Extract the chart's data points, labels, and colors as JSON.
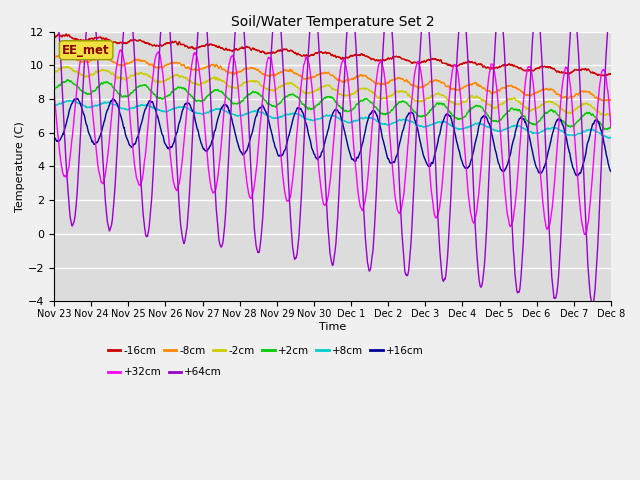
{
  "title": "Soil/Water Temperature Set 2",
  "xlabel": "Time",
  "ylabel": "Temperature (C)",
  "ylim": [
    -4,
    12
  ],
  "yticks": [
    -4,
    -2,
    0,
    2,
    4,
    6,
    8,
    10,
    12
  ],
  "plot_bg": "#dcdcdc",
  "fig_bg": "#f0f0f0",
  "annotation_text": "EE_met",
  "series": [
    {
      "label": "-16cm",
      "color": "#cc0000",
      "base_start": 11.7,
      "base_end": 9.5,
      "amplitude": 0.12,
      "phase_days": 0.0,
      "noise_scale": 0.08
    },
    {
      "label": "-8cm",
      "color": "#ff8800",
      "base_start": 10.5,
      "base_end": 8.1,
      "amplitude": 0.18,
      "phase_days": 0.05,
      "noise_scale": 0.08
    },
    {
      "label": "-2cm",
      "color": "#cccc00",
      "base_start": 9.7,
      "base_end": 7.3,
      "amplitude": 0.22,
      "phase_days": 0.1,
      "noise_scale": 0.08
    },
    {
      "label": "+2cm",
      "color": "#00cc00",
      "base_start": 8.8,
      "base_end": 6.65,
      "amplitude": 0.35,
      "phase_days": 0.15,
      "noise_scale": 0.07
    },
    {
      "label": "+8cm",
      "color": "#00cccc",
      "base_start": 7.8,
      "base_end": 5.9,
      "amplitude": 0.15,
      "phase_days": 0.2,
      "noise_scale": 0.05
    },
    {
      "label": "+16cm",
      "color": "#000099",
      "base_start": 6.8,
      "base_end": 5.0,
      "amplitude": 1.3,
      "phase_days": 0.35,
      "noise_scale": 0.08
    },
    {
      "label": "+32cm",
      "color": "#ff00ff",
      "base_start": 7.2,
      "base_end": 4.8,
      "amplitude": 3.8,
      "phase_days": 0.55,
      "noise_scale": 0.1
    },
    {
      "label": "+64cm",
      "color": "#9900cc",
      "base_start": 7.5,
      "base_end": 4.5,
      "amplitude": 6.8,
      "phase_days": 0.75,
      "noise_scale": 0.12
    }
  ],
  "n_points": 2160,
  "x_start": 0,
  "x_end": 15,
  "xtick_positions": [
    0,
    1,
    2,
    3,
    4,
    5,
    6,
    7,
    8,
    9,
    10,
    11,
    12,
    13,
    14,
    15
  ],
  "xtick_labels": [
    "Nov 23",
    "Nov 24",
    "Nov 25",
    "Nov 26",
    "Nov 27",
    "Nov 28",
    "Nov 29",
    "Nov 30",
    "Dec 1",
    "Dec 2",
    "Dec 3",
    "Dec 4",
    "Dec 5",
    "Dec 6",
    "Dec 7",
    "Dec 8"
  ],
  "legend_row1": [
    [
      "-16cm",
      "#cc0000"
    ],
    [
      "-8cm",
      "#ff8800"
    ],
    [
      "-2cm",
      "#cccc00"
    ],
    [
      "+2cm",
      "#00cc00"
    ],
    [
      "+8cm",
      "#00cccc"
    ],
    [
      "+16cm",
      "#000099"
    ]
  ],
  "legend_row2": [
    [
      "+32cm",
      "#ff00ff"
    ],
    [
      "+64cm",
      "#9900cc"
    ]
  ],
  "linewidth": 1.0
}
